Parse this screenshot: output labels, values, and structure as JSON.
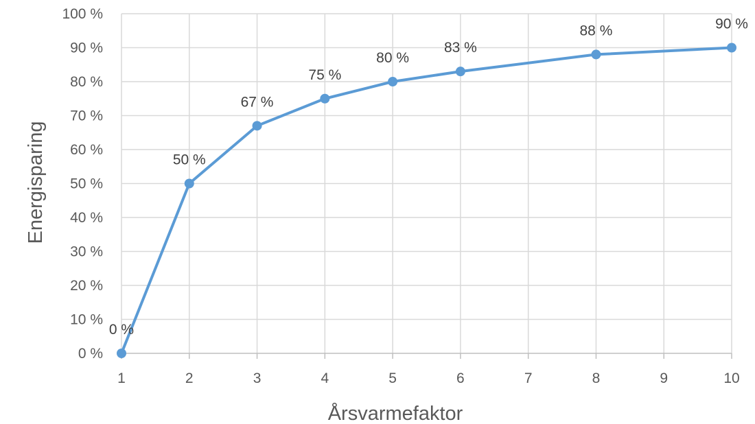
{
  "chart_data": {
    "type": "line",
    "xlabel": "Årsvarmefaktor",
    "ylabel": "Energisparing",
    "x_ticks": [
      "1",
      "2",
      "3",
      "4",
      "5",
      "6",
      "7",
      "8",
      "9",
      "10"
    ],
    "y_ticks": [
      "0 %",
      "10 %",
      "20 %",
      "30 %",
      "40 %",
      "50 %",
      "60 %",
      "70 %",
      "80 %",
      "90 %",
      "100 %"
    ],
    "xlim": [
      1,
      10
    ],
    "ylim": [
      0,
      100
    ],
    "grid": true,
    "legend": "none",
    "series": [
      {
        "color": "#5b9bd5",
        "points": [
          {
            "x": 1,
            "y": 0,
            "label": "0 %"
          },
          {
            "x": 2,
            "y": 50,
            "label": "50 %"
          },
          {
            "x": 3,
            "y": 67,
            "label": "67 %"
          },
          {
            "x": 4,
            "y": 75,
            "label": "75 %"
          },
          {
            "x": 5,
            "y": 80,
            "label": "80 %"
          },
          {
            "x": 6,
            "y": 83,
            "label": "83 %"
          },
          {
            "x": 8,
            "y": 88,
            "label": "88 %"
          },
          {
            "x": 10,
            "y": 90,
            "label": "90 %"
          }
        ]
      }
    ]
  }
}
